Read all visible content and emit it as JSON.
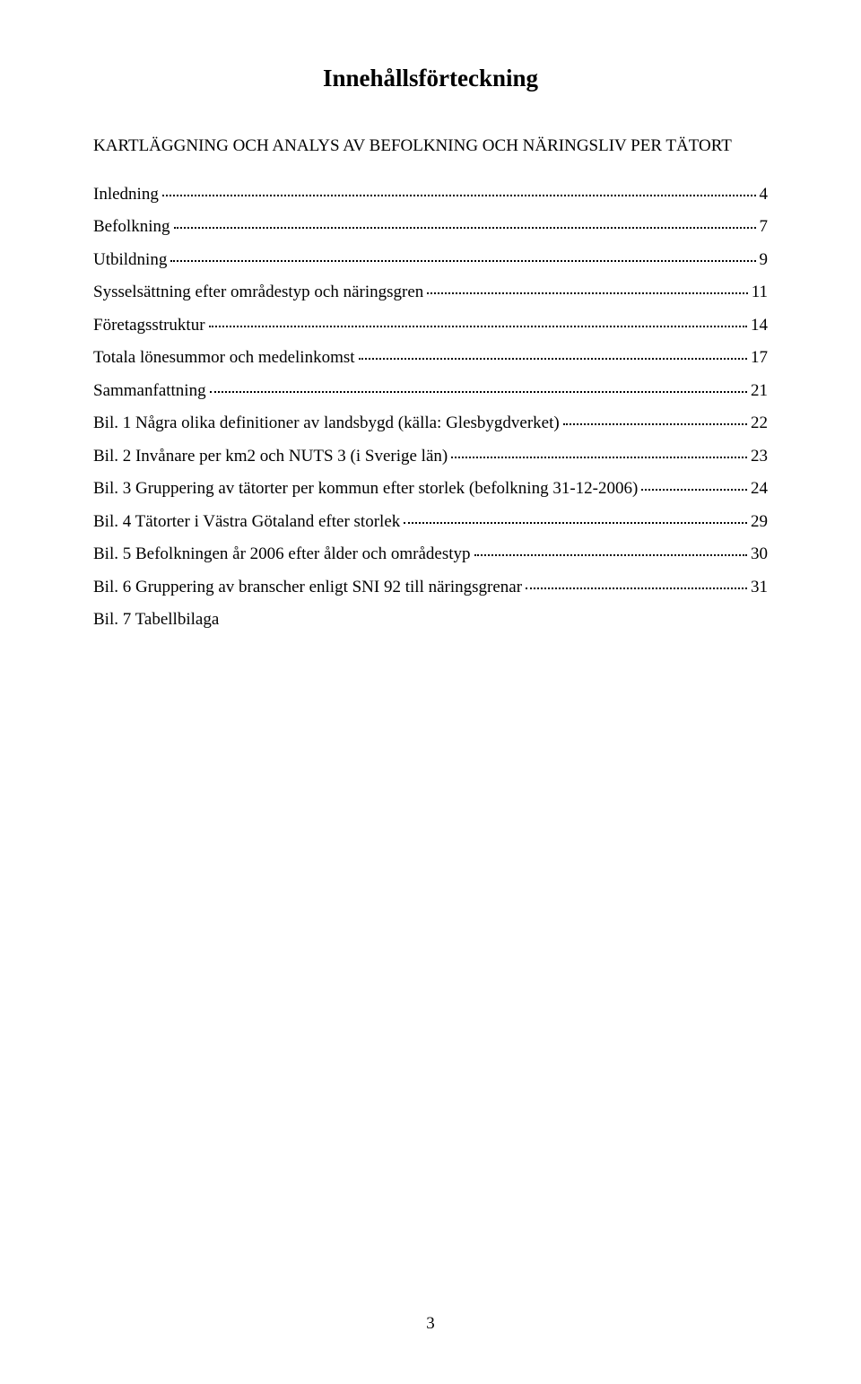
{
  "title": "Innehållsförteckning",
  "subtitle": "KARTLÄGGNING OCH ANALYS AV BEFOLKNING OCH NÄRINGSLIV PER TÄTORT",
  "entries": [
    {
      "label": "Inledning",
      "page": "4"
    },
    {
      "label": "Befolkning",
      "page": "7"
    },
    {
      "label": "Utbildning",
      "page": "9"
    },
    {
      "label": "Sysselsättning efter områdestyp och näringsgren",
      "page": "11"
    },
    {
      "label": "Företagsstruktur",
      "page": "14"
    },
    {
      "label": "Totala lönesummor och medelinkomst",
      "page": "17"
    },
    {
      "label": "Sammanfattning",
      "page": "21"
    },
    {
      "label": "Bil. 1 Några olika definitioner av landsbygd (källa: Glesbygdverket)",
      "page": "22"
    },
    {
      "label": "Bil. 2 Invånare per km2 och NUTS 3 (i Sverige län)",
      "page": "23"
    },
    {
      "label": "Bil. 3 Gruppering av tätorter per kommun efter storlek (befolkning 31-12-2006)",
      "page": "24"
    },
    {
      "label": "Bil. 4 Tätorter i Västra Götaland efter storlek",
      "page": "29"
    },
    {
      "label": "Bil. 5 Befolkningen år 2006 efter ålder och områdestyp",
      "page": "30"
    },
    {
      "label": "Bil. 6 Gruppering av branscher enligt SNI 92 till näringsgrenar",
      "page": "31"
    }
  ],
  "final_entry": "Bil. 7 Tabellbilaga",
  "footer_page_number": "3",
  "colors": {
    "background": "#ffffff",
    "text": "#000000"
  }
}
